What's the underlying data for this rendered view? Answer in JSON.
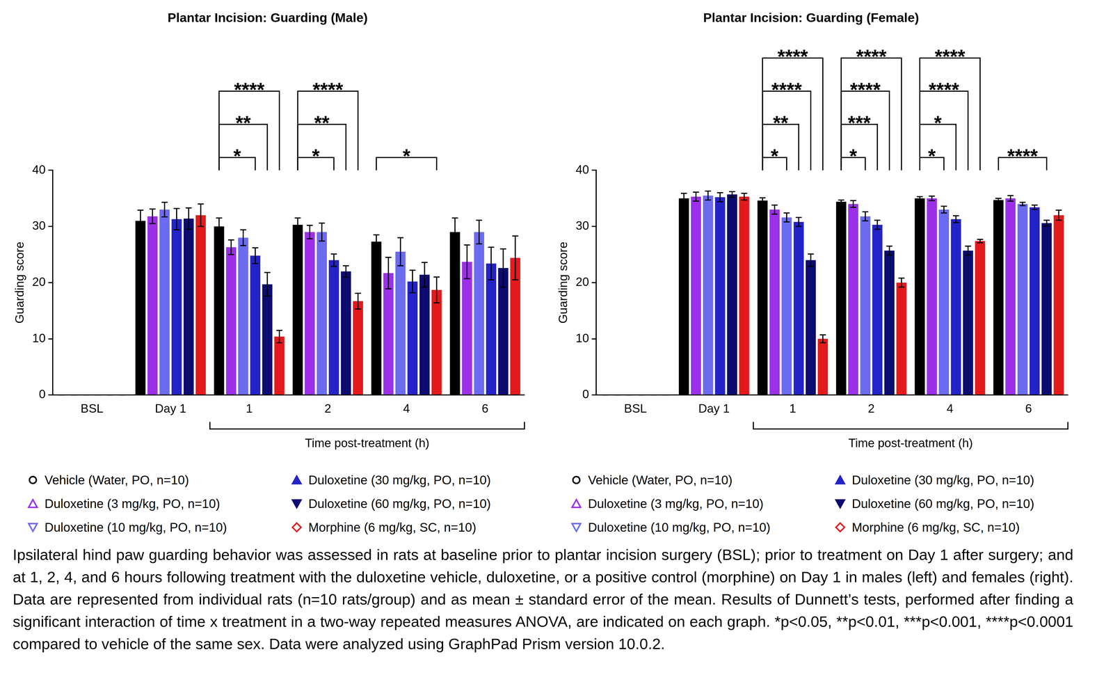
{
  "chart_data": [
    {
      "type": "bar",
      "title": "Plantar Incision: Guarding (Male)",
      "ylabel": "Guarding score",
      "xlabel": "Time post-treatment (h)",
      "categories": [
        "BSL",
        "Day 1",
        "1",
        "2",
        "4",
        "6"
      ],
      "ylim": [
        0,
        40
      ],
      "yticks": [
        0,
        10,
        20,
        30,
        40
      ],
      "legend": "bottom",
      "series": [
        {
          "name": "Vehicle (Water, PO, n=10)",
          "color": "#000000",
          "marker": "circle-open",
          "values": [
            0,
            31,
            30,
            30.3,
            27.3,
            29
          ],
          "errors": [
            0,
            1.9,
            1.5,
            1.2,
            1.2,
            2.5
          ]
        },
        {
          "name": "Duloxetine (3 mg/kg, PO, n=10)",
          "color": "#9b30e8",
          "marker": "triangle-up-open",
          "values": [
            0,
            31.8,
            26.3,
            29,
            21.7,
            23.7
          ],
          "errors": [
            0,
            1.3,
            1.3,
            1.2,
            2.8,
            3.0
          ]
        },
        {
          "name": "Duloxetine (10 mg/kg, PO, n=10)",
          "color": "#6b6bf0",
          "marker": "triangle-down-open",
          "values": [
            0,
            33,
            28,
            29,
            25.5,
            29
          ],
          "errors": [
            0,
            1.3,
            1.4,
            1.6,
            2.5,
            2.1
          ]
        },
        {
          "name": "Duloxetine (30 mg/kg, PO, n=10)",
          "color": "#2323c8",
          "marker": "triangle-up",
          "values": [
            0,
            31.3,
            24.8,
            24,
            20.2,
            23.4
          ],
          "errors": [
            0,
            1.9,
            1.4,
            1.1,
            2.0,
            2.9
          ]
        },
        {
          "name": "Duloxetine (60 mg/kg, PO, n=10)",
          "color": "#0b0b70",
          "marker": "triangle-down",
          "values": [
            0,
            31.4,
            19.7,
            22,
            21.4,
            22.6
          ],
          "errors": [
            0,
            1.9,
            2.1,
            1.0,
            2.2,
            3.4
          ]
        },
        {
          "name": "Morphine (6 mg/kg, SC, n=10)",
          "color": "#e31a1c",
          "marker": "diamond-open",
          "values": [
            0,
            32,
            10.4,
            16.7,
            18.7,
            24.4
          ],
          "errors": [
            0,
            2.0,
            1.1,
            1.4,
            2.3,
            3.9
          ]
        }
      ],
      "comparisons": [
        {
          "category": "1",
          "from": "Vehicle (Water, PO, n=10)",
          "to": "Duloxetine (30 mg/kg, PO, n=10)",
          "label": "*"
        },
        {
          "category": "1",
          "from": "Vehicle (Water, PO, n=10)",
          "to": "Duloxetine (60 mg/kg, PO, n=10)",
          "label": "**"
        },
        {
          "category": "1",
          "from": "Vehicle (Water, PO, n=10)",
          "to": "Morphine (6 mg/kg, SC, n=10)",
          "label": "****"
        },
        {
          "category": "2",
          "from": "Vehicle (Water, PO, n=10)",
          "to": "Duloxetine (30 mg/kg, PO, n=10)",
          "label": "*"
        },
        {
          "category": "2",
          "from": "Vehicle (Water, PO, n=10)",
          "to": "Duloxetine (60 mg/kg, PO, n=10)",
          "label": "**"
        },
        {
          "category": "2",
          "from": "Vehicle (Water, PO, n=10)",
          "to": "Morphine (6 mg/kg, SC, n=10)",
          "label": "****"
        },
        {
          "category": "4",
          "from": "Vehicle (Water, PO, n=10)",
          "to": "Morphine (6 mg/kg, SC, n=10)",
          "label": "*"
        }
      ]
    },
    {
      "type": "bar",
      "title": "Plantar Incision: Guarding (Female)",
      "ylabel": "Guarding score",
      "xlabel": "Time post-treatment (h)",
      "categories": [
        "BSL",
        "Day 1",
        "1",
        "2",
        "4",
        "6"
      ],
      "ylim": [
        0,
        40
      ],
      "yticks": [
        0,
        10,
        20,
        30,
        40
      ],
      "legend": "bottom",
      "series": [
        {
          "name": "Vehicle (Water, PO, n=10)",
          "color": "#000000",
          "marker": "circle-open",
          "values": [
            0,
            35,
            34.6,
            34.4,
            35,
            34.7
          ],
          "errors": [
            0,
            0.9,
            0.5,
            0.3,
            0.3,
            0.3
          ]
        },
        {
          "name": "Duloxetine (3 mg/kg, PO, n=10)",
          "color": "#9b30e8",
          "marker": "triangle-up-open",
          "values": [
            0,
            35.3,
            33,
            34,
            35,
            35
          ],
          "errors": [
            0,
            0.8,
            0.8,
            0.6,
            0.4,
            0.5
          ]
        },
        {
          "name": "Duloxetine (10 mg/kg, PO, n=10)",
          "color": "#6b6bf0",
          "marker": "triangle-down-open",
          "values": [
            0,
            35.5,
            31.6,
            31.8,
            33,
            34
          ],
          "errors": [
            0,
            0.8,
            0.8,
            0.8,
            0.6,
            0.3
          ]
        },
        {
          "name": "Duloxetine (30 mg/kg, PO, n=10)",
          "color": "#2323c8",
          "marker": "triangle-up",
          "values": [
            0,
            35.2,
            30.8,
            30.3,
            31.3,
            33.4
          ],
          "errors": [
            0,
            0.8,
            0.8,
            0.8,
            0.6,
            0.4
          ]
        },
        {
          "name": "Duloxetine (60 mg/kg, PO, n=10)",
          "color": "#0b0b70",
          "marker": "triangle-down",
          "values": [
            0,
            35.7,
            24,
            25.7,
            25.7,
            30.6
          ],
          "errors": [
            0,
            0.5,
            1.1,
            0.8,
            0.8,
            0.5
          ]
        },
        {
          "name": "Morphine (6 mg/kg, SC, n=10)",
          "color": "#e31a1c",
          "marker": "diamond-open",
          "values": [
            0,
            35.3,
            10,
            20,
            27.4,
            32
          ],
          "errors": [
            0,
            0.6,
            0.7,
            0.8,
            0.3,
            0.9
          ]
        }
      ],
      "comparisons": [
        {
          "category": "1",
          "from": "Vehicle (Water, PO, n=10)",
          "to": "Duloxetine (10 mg/kg, PO, n=10)",
          "label": "*"
        },
        {
          "category": "1",
          "from": "Vehicle (Water, PO, n=10)",
          "to": "Duloxetine (30 mg/kg, PO, n=10)",
          "label": "**"
        },
        {
          "category": "1",
          "from": "Vehicle (Water, PO, n=10)",
          "to": "Duloxetine (60 mg/kg, PO, n=10)",
          "label": "****"
        },
        {
          "category": "1",
          "from": "Vehicle (Water, PO, n=10)",
          "to": "Morphine (6 mg/kg, SC, n=10)",
          "label": "****"
        },
        {
          "category": "2",
          "from": "Vehicle (Water, PO, n=10)",
          "to": "Duloxetine (10 mg/kg, PO, n=10)",
          "label": "*"
        },
        {
          "category": "2",
          "from": "Vehicle (Water, PO, n=10)",
          "to": "Duloxetine (30 mg/kg, PO, n=10)",
          "label": "***"
        },
        {
          "category": "2",
          "from": "Vehicle (Water, PO, n=10)",
          "to": "Duloxetine (60 mg/kg, PO, n=10)",
          "label": "****"
        },
        {
          "category": "2",
          "from": "Vehicle (Water, PO, n=10)",
          "to": "Morphine (6 mg/kg, SC, n=10)",
          "label": "****"
        },
        {
          "category": "4",
          "from": "Vehicle (Water, PO, n=10)",
          "to": "Duloxetine (10 mg/kg, PO, n=10)",
          "label": "*"
        },
        {
          "category": "4",
          "from": "Vehicle (Water, PO, n=10)",
          "to": "Duloxetine (30 mg/kg, PO, n=10)",
          "label": "*"
        },
        {
          "category": "4",
          "from": "Vehicle (Water, PO, n=10)",
          "to": "Duloxetine (60 mg/kg, PO, n=10)",
          "label": "****"
        },
        {
          "category": "4",
          "from": "Vehicle (Water, PO, n=10)",
          "to": "Morphine (6 mg/kg, SC, n=10)",
          "label": "****"
        },
        {
          "category": "6",
          "from": "Vehicle (Water, PO, n=10)",
          "to": "Duloxetine (60 mg/kg, PO, n=10)",
          "label": "****"
        }
      ]
    }
  ],
  "caption": "Ipsilateral hind paw guarding behavior was assessed in rats at baseline prior to plantar incision surgery (BSL); prior to treatment on Day 1 after surgery; and at 1, 2, 4, and 6 hours following treatment with the duloxetine vehicle, duloxetine, or a positive control (morphine) on Day 1 in males (left) and females (right). Data are represented from individual rats (n=10 rats/group) and as mean ± standard error of the mean. Results of Dunnett’s tests, performed after finding a significant interaction of time x treatment in a two-way repeated measures ANOVA, are indicated on each graph. *p<0.05, **p<0.01, ***p<0.001, ****p<0.0001 compared to vehicle of the same sex. Data were analyzed using GraphPad Prism version 10.0.2."
}
